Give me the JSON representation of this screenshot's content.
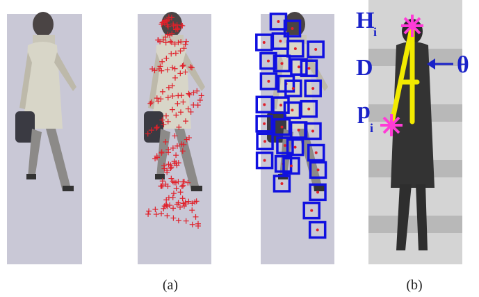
{
  "figure": {
    "captions": [
      "(a)",
      "(b)"
    ],
    "labels": {
      "head": "H",
      "head_sub": "i",
      "direction": "D",
      "angle": "θ",
      "point": "p",
      "point_sub": "i"
    }
  }
}
